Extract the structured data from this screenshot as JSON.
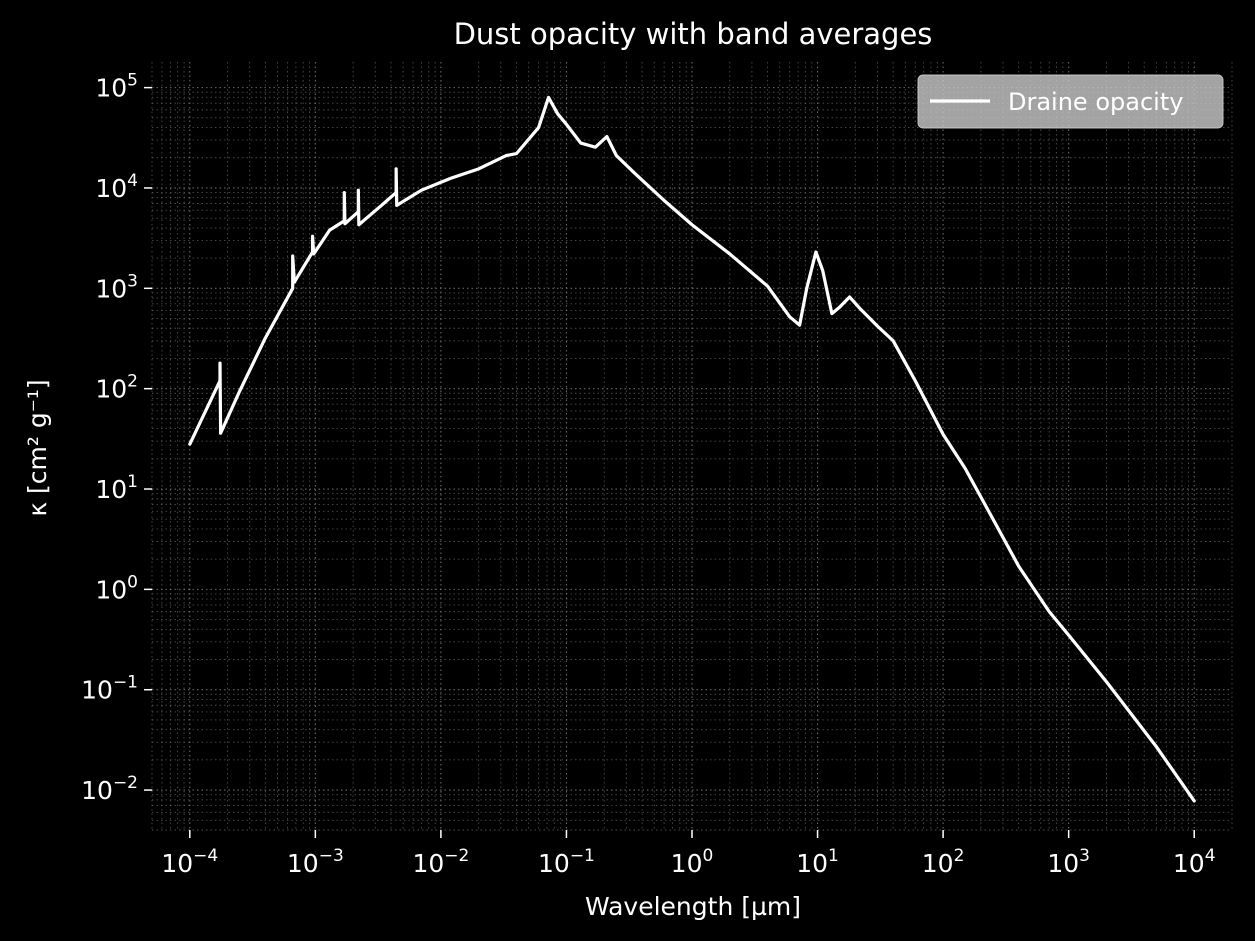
{
  "chart_data": {
    "type": "line",
    "title": "Dust opacity with band averages",
    "xlabel": "Wavelength [µm]",
    "ylabel": "κ [cm² g⁻¹]",
    "x_scale": "log",
    "y_scale": "log",
    "xlim": [
      5e-05,
      20000
    ],
    "ylim": [
      0.004,
      180000
    ],
    "x_ticks": [
      {
        "base": "10",
        "exp": "−4",
        "value": 0.0001
      },
      {
        "base": "10",
        "exp": "−3",
        "value": 0.001
      },
      {
        "base": "10",
        "exp": "−2",
        "value": 0.01
      },
      {
        "base": "10",
        "exp": "−1",
        "value": 0.1
      },
      {
        "base": "10",
        "exp": "0",
        "value": 1
      },
      {
        "base": "10",
        "exp": "1",
        "value": 10
      },
      {
        "base": "10",
        "exp": "2",
        "value": 100
      },
      {
        "base": "10",
        "exp": "3",
        "value": 1000
      },
      {
        "base": "10",
        "exp": "4",
        "value": 10000
      }
    ],
    "y_ticks": [
      {
        "base": "10",
        "exp": "−2",
        "value": 0.01
      },
      {
        "base": "10",
        "exp": "−1",
        "value": 0.1
      },
      {
        "base": "10",
        "exp": "0",
        "value": 1
      },
      {
        "base": "10",
        "exp": "1",
        "value": 10
      },
      {
        "base": "10",
        "exp": "2",
        "value": 100
      },
      {
        "base": "10",
        "exp": "3",
        "value": 1000
      },
      {
        "base": "10",
        "exp": "4",
        "value": 10000
      },
      {
        "base": "10",
        "exp": "5",
        "value": 100000
      }
    ],
    "grid": true,
    "legend_position": "top-right",
    "colors": {
      "background": "#000000",
      "line": "#ffffff",
      "grid": "#8a8a8a",
      "legend_box": "#cccccc"
    },
    "series": [
      {
        "name": "Draine opacity",
        "points": [
          [
            0.0001,
            28
          ],
          [
            0.000174,
            120
          ],
          [
            0.000174,
            180
          ],
          [
            0.000176,
            36
          ],
          [
            0.00025,
            95
          ],
          [
            0.0004,
            320
          ],
          [
            0.00066,
            1000
          ],
          [
            0.00066,
            2100
          ],
          [
            0.00068,
            1150
          ],
          [
            0.00095,
            2300
          ],
          [
            0.00095,
            3300
          ],
          [
            0.00097,
            2200
          ],
          [
            0.0013,
            3800
          ],
          [
            0.0017,
            4700
          ],
          [
            0.0017,
            9000
          ],
          [
            0.00172,
            4400
          ],
          [
            0.0022,
            5800
          ],
          [
            0.0022,
            9500
          ],
          [
            0.00222,
            4300
          ],
          [
            0.0035,
            7000
          ],
          [
            0.0044,
            9000
          ],
          [
            0.0044,
            15500
          ],
          [
            0.00445,
            6700
          ],
          [
            0.007,
            9500
          ],
          [
            0.012,
            12500
          ],
          [
            0.02,
            15500
          ],
          [
            0.033,
            21000
          ],
          [
            0.04,
            22000
          ],
          [
            0.06,
            40000
          ],
          [
            0.072,
            80000
          ],
          [
            0.085,
            55000
          ],
          [
            0.1,
            43000
          ],
          [
            0.13,
            28000
          ],
          [
            0.17,
            25500
          ],
          [
            0.21,
            32500
          ],
          [
            0.25,
            21000
          ],
          [
            0.35,
            14000
          ],
          [
            0.6,
            7500
          ],
          [
            1.0,
            4300
          ],
          [
            2.0,
            2200
          ],
          [
            4.0,
            1050
          ],
          [
            6.0,
            520
          ],
          [
            7.2,
            430
          ],
          [
            8.2,
            1000
          ],
          [
            9.7,
            2300
          ],
          [
            11.0,
            1500
          ],
          [
            13.0,
            560
          ],
          [
            15.0,
            650
          ],
          [
            18.0,
            820
          ],
          [
            22.0,
            620
          ],
          [
            30.0,
            420
          ],
          [
            40.0,
            300
          ],
          [
            60.0,
            120
          ],
          [
            100.0,
            35
          ],
          [
            150.0,
            16
          ],
          [
            250.0,
            5
          ],
          [
            400.0,
            1.7
          ],
          [
            700.0,
            0.6
          ],
          [
            1000.0,
            0.35
          ],
          [
            2000.0,
            0.12
          ],
          [
            5000.0,
            0.027
          ],
          [
            10000.0,
            0.0078
          ]
        ]
      }
    ]
  }
}
